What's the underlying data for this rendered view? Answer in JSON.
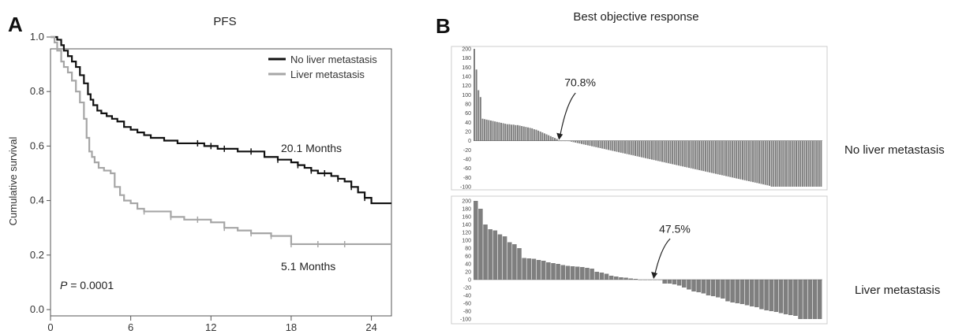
{
  "chart_data": [
    {
      "panel": "A",
      "type": "line",
      "title": "PFS",
      "xlabel": "",
      "ylabel": "Cumulative survival",
      "xlim": [
        0,
        25.5
      ],
      "ylim": [
        0,
        1.0
      ],
      "x_ticks": [
        0,
        6,
        12,
        18,
        24
      ],
      "y_ticks": [
        "0.0",
        "0.2",
        "0.4",
        "0.6",
        "0.8",
        "1.0"
      ],
      "legend_position": "top-right",
      "series": [
        {
          "name": "No liver metastasis",
          "color": "#111111",
          "x": [
            0,
            0.5,
            0.8,
            1.0,
            1.3,
            1.6,
            1.9,
            2.2,
            2.5,
            2.8,
            3.0,
            3.2,
            3.5,
            3.8,
            4.2,
            4.6,
            5.0,
            5.5,
            6.0,
            6.5,
            7.0,
            7.5,
            8.0,
            8.5,
            9.0,
            9.5,
            10.0,
            11.0,
            11.5,
            12.0,
            12.5,
            13.0,
            14.0,
            15.0,
            16.0,
            17.0,
            18.0,
            18.5,
            19.0,
            19.5,
            20.0,
            20.5,
            21.0,
            21.5,
            22.0,
            22.5,
            23.0,
            23.5,
            24.0,
            25.5
          ],
          "y": [
            1.0,
            0.99,
            0.97,
            0.95,
            0.93,
            0.91,
            0.89,
            0.86,
            0.83,
            0.79,
            0.77,
            0.75,
            0.73,
            0.72,
            0.71,
            0.7,
            0.69,
            0.67,
            0.66,
            0.65,
            0.64,
            0.63,
            0.63,
            0.62,
            0.62,
            0.61,
            0.61,
            0.61,
            0.6,
            0.6,
            0.59,
            0.59,
            0.58,
            0.58,
            0.56,
            0.55,
            0.54,
            0.53,
            0.52,
            0.51,
            0.5,
            0.5,
            0.49,
            0.48,
            0.47,
            0.45,
            0.43,
            0.41,
            0.39,
            0.39
          ],
          "annotation": "20.1 Months"
        },
        {
          "name": "Liver metastasis",
          "color": "#a6a6a6",
          "x": [
            0,
            0.3,
            0.5,
            0.8,
            1.0,
            1.3,
            1.6,
            1.9,
            2.2,
            2.5,
            2.7,
            2.9,
            3.1,
            3.3,
            3.6,
            4.0,
            4.5,
            4.8,
            5.2,
            5.5,
            6.0,
            6.5,
            7.0,
            8.0,
            9.0,
            10.0,
            11.0,
            12.0,
            13.0,
            14.0,
            15.0,
            16.0,
            16.5,
            17.0,
            18.0,
            19.0,
            20.0,
            21.0,
            22.0,
            23.0,
            25.5
          ],
          "y": [
            1.0,
            0.98,
            0.95,
            0.91,
            0.89,
            0.87,
            0.84,
            0.8,
            0.76,
            0.7,
            0.63,
            0.58,
            0.56,
            0.54,
            0.52,
            0.51,
            0.5,
            0.45,
            0.42,
            0.4,
            0.39,
            0.37,
            0.36,
            0.36,
            0.34,
            0.33,
            0.33,
            0.32,
            0.3,
            0.29,
            0.28,
            0.28,
            0.27,
            0.27,
            0.24,
            0.24,
            0.24,
            0.24,
            0.24,
            0.24,
            0.24
          ],
          "annotation": "5.1 Months"
        }
      ],
      "p_prefix": "P",
      "p_value": " = 0.0001"
    },
    {
      "panel": "B",
      "type": "bar",
      "title": "Best objective response",
      "subpanels": [
        {
          "label": "No liver metastasis",
          "percent_label": "70.8%",
          "ylim": [
            -100,
            200
          ],
          "y_ticks": [
            200,
            180,
            160,
            140,
            120,
            100,
            80,
            60,
            40,
            20,
            0,
            -20,
            -40,
            -60,
            -80,
            -100
          ],
          "color": "#7f7f7f",
          "values": [
            200,
            155,
            110,
            95,
            48,
            47,
            46,
            45,
            44,
            43,
            42,
            41,
            40,
            39,
            38,
            37,
            36,
            36,
            35,
            35,
            34,
            34,
            33,
            32,
            31,
            30,
            29,
            28,
            27,
            25,
            24,
            22,
            20,
            18,
            16,
            14,
            12,
            10,
            8,
            6,
            4,
            0,
            0,
            0,
            0,
            0,
            -1,
            -2,
            -3,
            -4,
            -5,
            -6,
            -7,
            -8,
            -9,
            -10,
            -11,
            -12,
            -13,
            -14,
            -15,
            -16,
            -17,
            -18,
            -19,
            -20,
            -21,
            -22,
            -23,
            -24,
            -25,
            -26,
            -27,
            -28,
            -29,
            -30,
            -31,
            -32,
            -33,
            -34,
            -35,
            -36,
            -37,
            -38,
            -39,
            -40,
            -41,
            -42,
            -43,
            -44,
            -45,
            -46,
            -47,
            -48,
            -49,
            -50,
            -51,
            -52,
            -53,
            -54,
            -55,
            -56,
            -57,
            -58,
            -59,
            -60,
            -61,
            -62,
            -63,
            -64,
            -65,
            -66,
            -67,
            -68,
            -69,
            -70,
            -71,
            -72,
            -73,
            -74,
            -75,
            -76,
            -77,
            -78,
            -79,
            -80,
            -81,
            -82,
            -83,
            -84,
            -85,
            -86,
            -87,
            -88,
            -89,
            -90,
            -91,
            -92,
            -93,
            -94,
            -95,
            -96,
            -97,
            -98,
            -100,
            -100,
            -100,
            -100,
            -100,
            -100,
            -100,
            -100,
            -100,
            -100,
            -100,
            -100,
            -100,
            -100,
            -100,
            -100,
            -100,
            -100,
            -100,
            -100,
            -100,
            -100,
            -100,
            -100,
            -100
          ]
        },
        {
          "label": "Liver metastasis",
          "percent_label": "47.5%",
          "ylim": [
            -100,
            200
          ],
          "y_ticks": [
            200,
            180,
            160,
            140,
            120,
            100,
            80,
            60,
            40,
            20,
            0,
            -20,
            -40,
            -60,
            -80,
            -100
          ],
          "color": "#7f7f7f",
          "values": [
            200,
            180,
            140,
            128,
            125,
            115,
            110,
            95,
            90,
            80,
            55,
            54,
            53,
            50,
            48,
            44,
            42,
            40,
            37,
            35,
            34,
            33,
            32,
            30,
            28,
            20,
            18,
            15,
            10,
            8,
            6,
            5,
            3,
            2,
            0,
            0,
            0,
            0,
            0,
            -10,
            -10,
            -12,
            -15,
            -20,
            -25,
            -30,
            -32,
            -35,
            -40,
            -42,
            -45,
            -48,
            -55,
            -58,
            -60,
            -62,
            -65,
            -68,
            -70,
            -75,
            -78,
            -80,
            -82,
            -85,
            -88,
            -90,
            -92,
            -100,
            -100,
            -100,
            -100,
            -100
          ]
        }
      ]
    }
  ]
}
